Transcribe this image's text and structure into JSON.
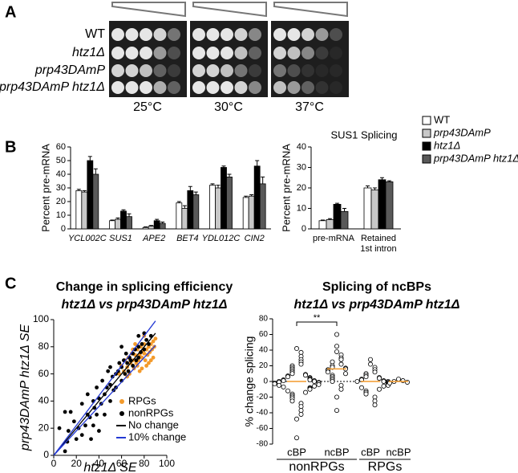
{
  "panel_labels": [
    "A",
    "B",
    "C"
  ],
  "spot_assay": {
    "strains": [
      "WT",
      "htz1Δ",
      "prp43DAmP",
      "prp43DAmP htz1Δ"
    ],
    "temperatures": [
      "25°C",
      "30°C",
      "37°C"
    ]
  },
  "chart_data": [
    {
      "type": "bar",
      "ylabel": "Percent pre-mRNA",
      "categories": [
        "YCL002C",
        "SUS1",
        "APE2",
        "BET4",
        "YDL012C",
        "CIN2"
      ],
      "ylim": [
        0,
        60
      ],
      "yticks": [
        0,
        10,
        20,
        30,
        40,
        50,
        60
      ],
      "series": [
        {
          "name": "WT",
          "color": "#ffffff",
          "values": [
            28,
            6,
            1,
            19,
            32,
            23
          ],
          "errors": [
            1,
            0.5,
            0.5,
            1,
            1,
            1
          ]
        },
        {
          "name": "prp43DAmP",
          "color": "#c8c8c8",
          "values": [
            27,
            7,
            2,
            15,
            30,
            24
          ],
          "errors": [
            1,
            1,
            0.5,
            2,
            2,
            1
          ]
        },
        {
          "name": "htz1Δ",
          "color": "#000000",
          "values": [
            50,
            13,
            6,
            28,
            45,
            46
          ],
          "errors": [
            3,
            1,
            1,
            3,
            1,
            4
          ]
        },
        {
          "name": "prp43DAmP htz1Δ",
          "color": "#595959",
          "values": [
            40,
            9,
            4,
            25,
            38,
            33
          ],
          "errors": [
            4,
            2,
            1,
            2,
            2,
            5
          ]
        }
      ]
    },
    {
      "type": "bar",
      "title": "SUS1 Splicing",
      "ylabel": "Percent pre-mRNA",
      "categories": [
        "pre-mRNA",
        "Retained 1st intron"
      ],
      "ylim": [
        0,
        40
      ],
      "yticks": [
        0,
        10,
        20,
        30,
        40
      ],
      "series": [
        {
          "color": "#ffffff",
          "values": [
            4,
            20
          ],
          "errors": [
            0.3,
            1
          ]
        },
        {
          "color": "#c8c8c8",
          "values": [
            4.5,
            19
          ],
          "errors": [
            0.5,
            1
          ]
        },
        {
          "color": "#000000",
          "values": [
            12,
            24
          ],
          "errors": [
            0.5,
            1
          ]
        },
        {
          "color": "#595959",
          "values": [
            8.5,
            23
          ],
          "errors": [
            1.5,
            0.5
          ]
        }
      ]
    },
    {
      "type": "scatter",
      "title": "Change in splicing efficiency",
      "subtitle": "htz1Δ vs prp43DAmP htz1Δ",
      "xlabel": "htz1Δ SE",
      "ylabel": "prp43DAmP htz1Δ SE",
      "xlim": [
        0,
        100
      ],
      "xticks": [
        0,
        20,
        40,
        60,
        80,
        100
      ],
      "ylim": [
        0,
        100
      ],
      "yticks": [
        0,
        20,
        40,
        60,
        80,
        100
      ],
      "series": [
        {
          "name": "RPGs",
          "color": "#f39a2b",
          "x": [
            58,
            60,
            62,
            63,
            65,
            66,
            67,
            68,
            69,
            70,
            71,
            72,
            73,
            74,
            75,
            76,
            77,
            78,
            79,
            80,
            80,
            81,
            82,
            83,
            84,
            85,
            86,
            87,
            88,
            88,
            89,
            90,
            78,
            76,
            74,
            84,
            86,
            70,
            72,
            80,
            65,
            82
          ],
          "values": [
            60,
            66,
            62,
            70,
            65,
            72,
            60,
            68,
            75,
            70,
            64,
            74,
            68,
            78,
            70,
            74,
            80,
            72,
            77,
            75,
            82,
            70,
            78,
            74,
            80,
            76,
            82,
            78,
            72,
            84,
            80,
            86,
            64,
            62,
            66,
            68,
            70,
            78,
            82,
            88,
            58,
            66
          ]
        },
        {
          "name": "nonRPGs",
          "color": "#000000",
          "x": [
            5,
            10,
            12,
            15,
            18,
            20,
            22,
            25,
            25,
            28,
            30,
            30,
            32,
            33,
            35,
            35,
            36,
            38,
            38,
            40,
            40,
            42,
            43,
            45,
            45,
            47,
            48,
            50,
            50,
            52,
            53,
            55,
            55,
            57,
            58,
            60,
            60,
            62,
            63,
            64,
            65,
            66,
            67,
            68,
            70,
            70,
            72,
            73,
            75,
            75,
            77,
            78,
            80,
            82,
            84,
            86,
            60,
            50,
            75,
            80,
            10,
            13
          ],
          "values": [
            20,
            3,
            10,
            32,
            25,
            12,
            20,
            15,
            38,
            22,
            30,
            45,
            28,
            12,
            40,
            22,
            35,
            30,
            50,
            42,
            18,
            38,
            55,
            45,
            30,
            50,
            62,
            52,
            40,
            58,
            48,
            60,
            50,
            62,
            68,
            65,
            55,
            70,
            60,
            75,
            68,
            62,
            72,
            70,
            75,
            66,
            78,
            70,
            80,
            72,
            76,
            82,
            78,
            85,
            82,
            88,
            80,
            65,
            88,
            90,
            32,
            18
          ]
        }
      ],
      "reference_lines": [
        {
          "name": "No change",
          "color": "#000000",
          "x": [
            0,
            90
          ],
          "values": [
            0,
            90
          ]
        },
        {
          "name": "10% change",
          "color": "#2439d4",
          "x": [
            0,
            90,
            null,
            0,
            90
          ],
          "values": [
            0,
            99,
            null,
            0,
            81
          ]
        }
      ]
    },
    {
      "type": "dot",
      "title": "Splicing of ncBPs",
      "subtitle": "htz1Δ vs prp43DAmP htz1Δ",
      "ylabel": "% change splicing",
      "categories": [
        "cBP",
        "ncBP",
        "cBP",
        "ncBP"
      ],
      "groups": [
        "nonRPGs",
        "RPGs"
      ],
      "ylim": [
        -80,
        80
      ],
      "yticks": [
        -80,
        -60,
        -40,
        -20,
        0,
        20,
        40,
        60,
        80
      ],
      "values": [
        [
          42,
          37,
          32,
          28,
          25,
          22,
          20,
          18,
          16,
          14,
          12,
          10,
          9,
          8,
          7,
          6,
          5,
          4,
          3,
          2,
          2,
          1,
          1,
          0,
          0,
          -1,
          -1,
          -2,
          -2,
          -3,
          -4,
          -5,
          -6,
          -7,
          -8,
          -9,
          -10,
          -12,
          -14,
          -16,
          -18,
          -20,
          -22,
          -25,
          -28,
          -32,
          -37,
          -42,
          -48,
          -72
        ],
        [
          60,
          45,
          38,
          34,
          30,
          28,
          25,
          22,
          20,
          18,
          17,
          16,
          15,
          14,
          12,
          10,
          8,
          6,
          4,
          2,
          0,
          -5,
          -10,
          -20,
          -37
        ],
        [
          28,
          22,
          18,
          15,
          12,
          10,
          8,
          6,
          5,
          4,
          3,
          2,
          1,
          0,
          0,
          0,
          -1,
          -2,
          -3,
          -4,
          -5,
          -6,
          -8,
          -10,
          -12,
          -14,
          -16,
          -20,
          -25,
          -30
        ],
        [
          3,
          1,
          0,
          -1,
          -2
        ]
      ],
      "medians": [
        0,
        16,
        0,
        0
      ],
      "median_color": "#f39a2b",
      "annotation": "**"
    }
  ]
}
